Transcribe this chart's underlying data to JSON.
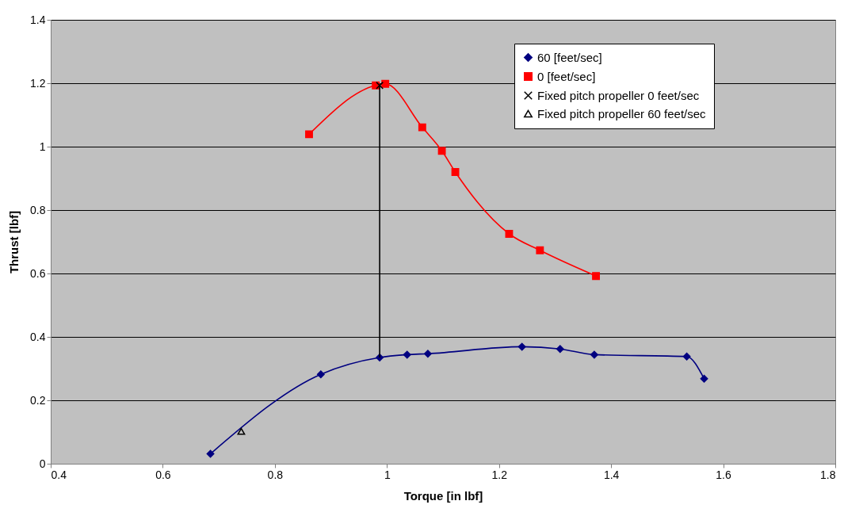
{
  "chart_data": {
    "type": "line",
    "xlabel": "Torque [in lbf]",
    "ylabel": "Thrust [lbf]",
    "xlim": [
      0.4,
      1.8
    ],
    "xticks": [
      0.4,
      0.6,
      0.8,
      1,
      1.2,
      1.4,
      1.6,
      1.8
    ],
    "ylim": [
      0,
      1.4
    ],
    "yticks": [
      0,
      0.2,
      0.4,
      0.6,
      0.8,
      1,
      1.2,
      1.4
    ],
    "grid": "y",
    "legend": "top right",
    "line_style": "solid",
    "series": [
      {
        "name": "60 [feet/sec]",
        "type": "line",
        "marker": "diamond",
        "color": "#000080",
        "x": [
          0.685,
          0.882,
          0.987,
          1.036,
          1.073,
          1.241,
          1.309,
          1.37,
          1.535,
          1.566
        ],
        "values": [
          0.031,
          0.282,
          0.335,
          0.344,
          0.347,
          0.369,
          0.362,
          0.344,
          0.338,
          0.268
        ]
      },
      {
        "name": "0 [feet/sec]",
        "type": "line",
        "marker": "square",
        "color": "#ff0000",
        "x": [
          0.861,
          0.98,
          0.997,
          1.063,
          1.098,
          1.122,
          1.218,
          1.273,
          1.373
        ],
        "values": [
          1.039,
          1.193,
          1.198,
          1.061,
          0.987,
          0.92,
          0.725,
          0.673,
          0.592
        ]
      },
      {
        "name": "Fixed pitch propeller 0 feet/sec",
        "type": "scatter",
        "marker": "cross",
        "color": "#000000",
        "x": [
          0.987
        ],
        "values": [
          1.193
        ]
      },
      {
        "name": "Fixed pitch propeller 60 feet/sec",
        "type": "scatter",
        "marker": "triangle",
        "color": "#000000",
        "x": [
          0.74
        ],
        "values": [
          0.102
        ]
      },
      {
        "type": "line",
        "marker": "none",
        "color": "#000000",
        "x": [
          0.987,
          0.987
        ],
        "values": [
          0.335,
          1.193
        ]
      }
    ]
  }
}
